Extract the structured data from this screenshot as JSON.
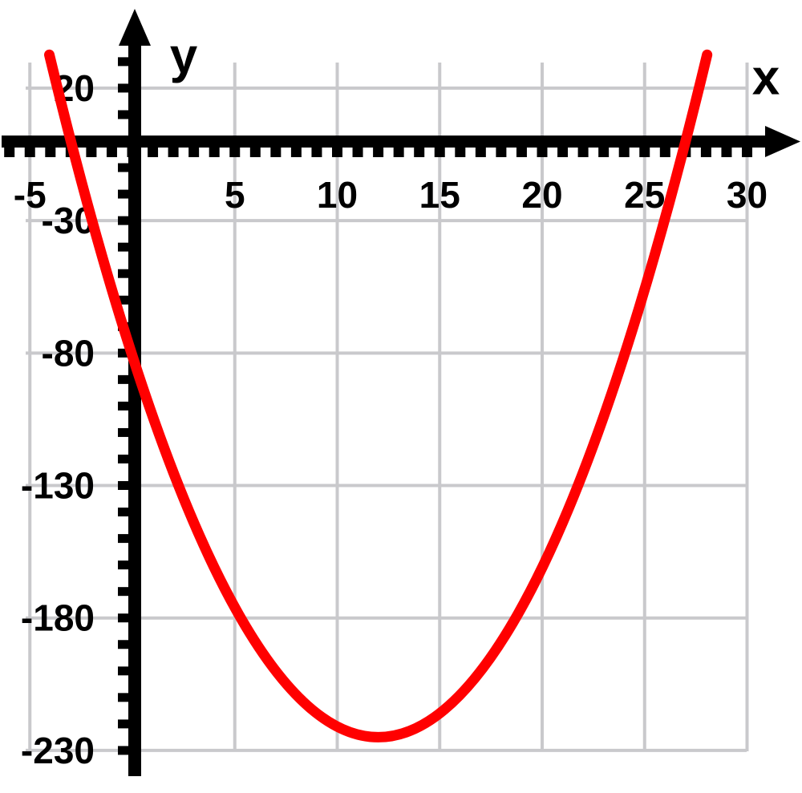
{
  "chart_data": {
    "type": "line",
    "xlabel": "x",
    "ylabel": "y",
    "xlim": [
      -6.4,
      32.6
    ],
    "ylim": [
      -240,
      50
    ],
    "grid": true,
    "legend": false,
    "x_tick_labels": [
      -5,
      5,
      10,
      15,
      20,
      25,
      30
    ],
    "y_tick_labels": [
      20,
      -30,
      -80,
      -130,
      -180,
      -230
    ],
    "x_minor_tick_step": 1,
    "x_minor_ticks_range": [
      -6,
      30
    ],
    "y_minor_tick_step": 10,
    "y_minor_ticks_range": [
      -230,
      30
    ],
    "series": [
      {
        "name": "parabola",
        "color": "#FF0000",
        "equation": "y = x^2 - 24x - 81 = (x + 3)(x - 27)",
        "quadratic": {
          "a": 1,
          "b": -24,
          "c": -81
        },
        "x_domain": [
          -4.05,
          28.05
        ],
        "vertex": {
          "x": 12,
          "y": -225
        },
        "x_intercepts": [
          -3,
          27
        ],
        "y_intercept": -81,
        "points": [
          [
            -4,
            31
          ],
          [
            -2,
            -29
          ],
          [
            0,
            -81
          ],
          [
            2,
            -125
          ],
          [
            4,
            -161
          ],
          [
            6,
            -189
          ],
          [
            8,
            -209
          ],
          [
            10,
            -221
          ],
          [
            12,
            -225
          ],
          [
            14,
            -221
          ],
          [
            16,
            -209
          ],
          [
            18,
            -189
          ],
          [
            20,
            -161
          ],
          [
            22,
            -125
          ],
          [
            24,
            -81
          ],
          [
            26,
            -29
          ],
          [
            28,
            31
          ]
        ]
      }
    ]
  },
  "colors": {
    "curve": "#FF0000",
    "axis": "#000000",
    "grid": "#C9C9CC",
    "background": "#FFFFFF",
    "label_text": "#000000"
  }
}
